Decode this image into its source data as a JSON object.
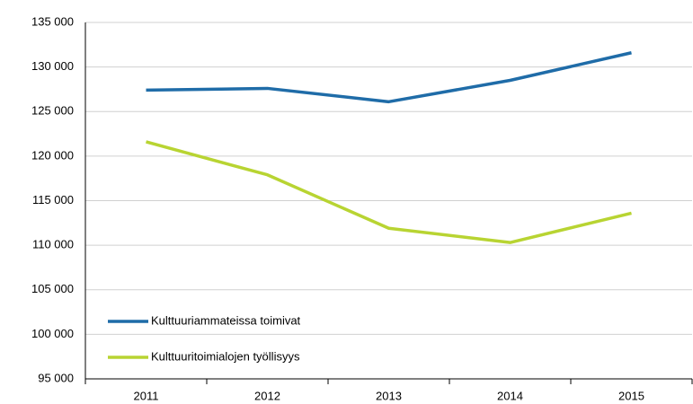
{
  "chart_data": {
    "type": "line",
    "categories": [
      "2011",
      "2012",
      "2013",
      "2014",
      "2015"
    ],
    "series": [
      {
        "name": "Kulttuuriammateissa toimivat",
        "color": "#1f6ca8",
        "values": [
          127400,
          127600,
          126100,
          128500,
          131600
        ]
      },
      {
        "name": "Kulttuuritoimialojen työllisyys",
        "color": "#b8d432",
        "values": [
          121600,
          117900,
          111900,
          110300,
          113600
        ]
      }
    ],
    "ylim": [
      95000,
      135000
    ],
    "yticks": [
      {
        "value": 95000,
        "label": "95 000"
      },
      {
        "value": 100000,
        "label": "100 000"
      },
      {
        "value": 105000,
        "label": "105 000"
      },
      {
        "value": 110000,
        "label": "110 000"
      },
      {
        "value": 115000,
        "label": "115 000"
      },
      {
        "value": 120000,
        "label": "120 000"
      },
      {
        "value": 125000,
        "label": "125 000"
      },
      {
        "value": 130000,
        "label": "130 000"
      },
      {
        "value": 135000,
        "label": "135 000"
      }
    ],
    "grid": true,
    "legend": "lower left"
  }
}
